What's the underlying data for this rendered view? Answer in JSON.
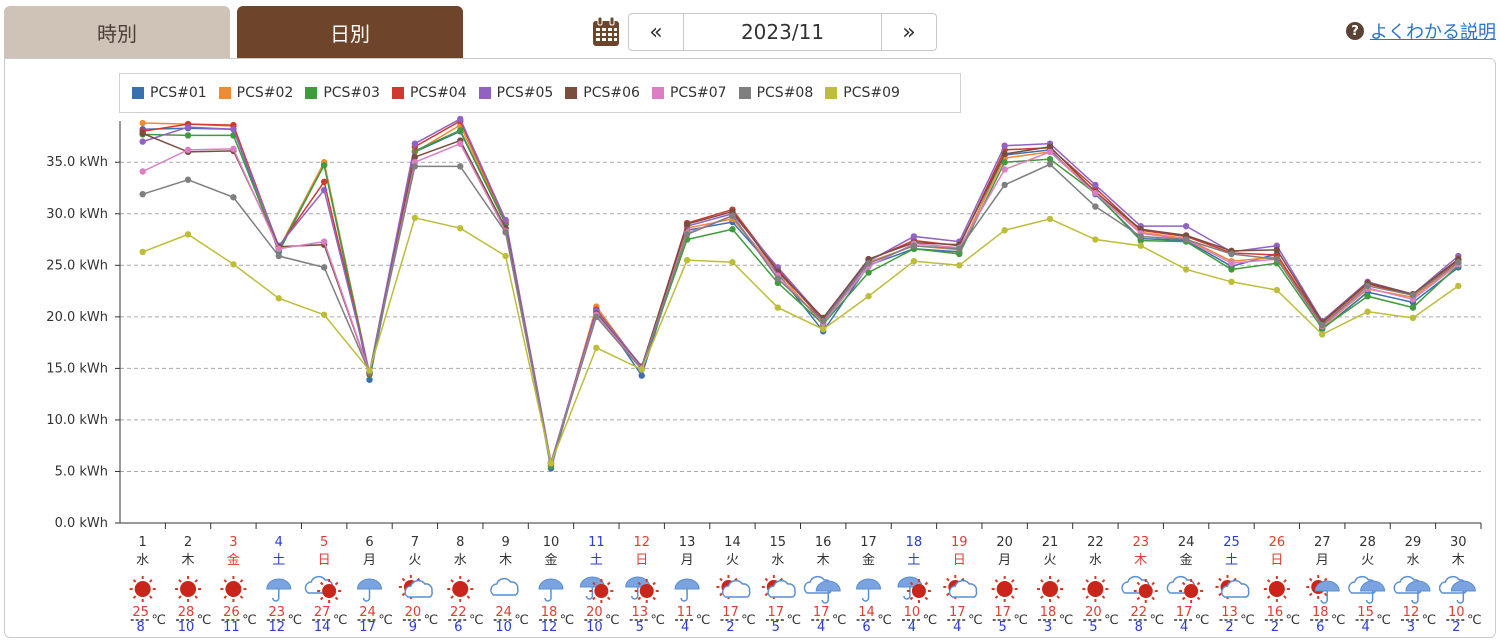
{
  "tabs": [
    {
      "label": "時別",
      "active": false
    },
    {
      "label": "日別",
      "active": true
    }
  ],
  "nav": {
    "prev": "«",
    "date": "2023/11",
    "next": "»"
  },
  "help": {
    "icon": "?",
    "label": "よくわかる説明"
  },
  "icons": {
    "calendar": "calendar-icon",
    "help": "question-circle-icon"
  },
  "colors": {
    "brand_brown": "#6e442a",
    "tab_inactive": "#cfc3b7",
    "weekday": "#333333",
    "saturday": "#2a3bd6",
    "holiday": "#e03c31",
    "high_temp": "#e03c31",
    "low_temp": "#2a3bd6"
  },
  "chart_data": {
    "type": "line",
    "ylim": [
      0,
      39
    ],
    "yticks": [
      "0.0 kWh",
      "5.0 kWh",
      "10.0 kWh",
      "15.0 kWh",
      "20.0 kWh",
      "25.0 kWh",
      "30.0 kWh",
      "35.0 kWh"
    ],
    "grid": true,
    "legend_position": "top-left",
    "x": [
      "1",
      "2",
      "3",
      "4",
      "5",
      "6",
      "7",
      "8",
      "9",
      "10",
      "11",
      "12",
      "13",
      "14",
      "15",
      "16",
      "17",
      "18",
      "19",
      "20",
      "21",
      "22",
      "23",
      "24",
      "25",
      "26",
      "27",
      "28",
      "29",
      "30"
    ],
    "weekday": [
      "水",
      "木",
      "金",
      "土",
      "日",
      "月",
      "火",
      "水",
      "木",
      "金",
      "土",
      "日",
      "月",
      "火",
      "水",
      "木",
      "金",
      "土",
      "日",
      "月",
      "火",
      "水",
      "木",
      "金",
      "土",
      "日",
      "月",
      "火",
      "水",
      "木"
    ],
    "day_type": [
      "w",
      "w",
      "h",
      "s",
      "h",
      "w",
      "w",
      "w",
      "w",
      "w",
      "s",
      "h",
      "w",
      "w",
      "w",
      "w",
      "w",
      "s",
      "h",
      "w",
      "w",
      "w",
      "h",
      "w",
      "s",
      "h",
      "w",
      "w",
      "w",
      "w"
    ],
    "weather": [
      "sunny",
      "sunny",
      "sunny",
      "rain",
      "cloudy-sunny",
      "rain",
      "sunny-cloudy",
      "sunny",
      "cloudy",
      "rain",
      "rain-sunny",
      "rain-sunny",
      "rain",
      "sunny-cloudy",
      "sunny-cloudy",
      "cloudy-rain",
      "rain",
      "rain-sunny",
      "sunny-cloudy",
      "sunny",
      "sunny",
      "sunny",
      "cloudy-sunny",
      "cloudy-sunny",
      "sunny-cloudy",
      "sunny",
      "sunny-rain",
      "cloudy-rain",
      "cloudy-rain",
      "cloudy-rain"
    ],
    "temp_high": [
      "25",
      "28",
      "26",
      "23",
      "27",
      "24",
      "20",
      "22",
      "24",
      "18",
      "20",
      "13",
      "11",
      "17",
      "17",
      "17",
      "14",
      "10",
      "17",
      "17",
      "18",
      "20",
      "22",
      "17",
      "13",
      "16",
      "18",
      "15",
      "12",
      "10"
    ],
    "temp_low": [
      "8",
      "10",
      "11",
      "12",
      "14",
      "17",
      "9",
      "6",
      "10",
      "12",
      "10",
      "5",
      "4",
      "2",
      "5",
      "4",
      "6",
      "4",
      "4",
      "5",
      "3",
      "5",
      "8",
      "4",
      "2",
      "2",
      "6",
      "4",
      "3",
      "2"
    ],
    "temp_unit": "℃",
    "series": [
      {
        "name": "PCS#01",
        "color": "#3a6fb0",
        "values": [
          38.2,
          38.3,
          38.2,
          26.3,
          34.8,
          13.9,
          36.0,
          38.0,
          29.0,
          5.3,
          20.8,
          14.3,
          28.4,
          29.2,
          24.2,
          18.6,
          25.0,
          26.6,
          26.3,
          35.7,
          36.2,
          31.9,
          27.6,
          27.4,
          24.9,
          26.1,
          18.8,
          22.4,
          21.4,
          24.8
        ]
      },
      {
        "name": "PCS#02",
        "color": "#f08a33",
        "values": [
          38.8,
          38.7,
          38.5,
          26.6,
          35.0,
          14.5,
          36.0,
          38.6,
          29.1,
          5.6,
          21.0,
          15.0,
          28.6,
          29.5,
          24.4,
          19.2,
          25.3,
          26.9,
          26.5,
          35.4,
          36.0,
          32.2,
          28.2,
          27.6,
          25.4,
          25.8,
          19.0,
          22.7,
          21.9,
          25.2
        ]
      },
      {
        "name": "PCS#03",
        "color": "#3f9b3c",
        "values": [
          37.7,
          37.6,
          37.6,
          26.5,
          34.7,
          14.4,
          36.1,
          38.1,
          29.0,
          5.5,
          20.5,
          15.0,
          27.5,
          28.5,
          23.3,
          19.3,
          24.3,
          26.6,
          26.1,
          35.0,
          35.3,
          32.0,
          27.4,
          27.3,
          24.6,
          25.2,
          18.9,
          22.0,
          20.9,
          25.0
        ]
      },
      {
        "name": "PCS#04",
        "color": "#d0392f",
        "values": [
          38.0,
          38.7,
          38.6,
          26.8,
          33.1,
          14.5,
          36.5,
          39.0,
          29.3,
          5.8,
          20.7,
          15.1,
          29.1,
          30.4,
          24.6,
          19.6,
          25.5,
          27.4,
          26.9,
          36.2,
          36.4,
          32.5,
          28.4,
          27.8,
          26.2,
          26.0,
          19.4,
          23.2,
          22.1,
          25.5
        ]
      },
      {
        "name": "PCS#05",
        "color": "#9063c2",
        "values": [
          37.0,
          38.4,
          38.2,
          26.9,
          32.3,
          14.6,
          36.8,
          39.2,
          29.4,
          5.9,
          20.6,
          15.2,
          28.8,
          30.0,
          24.8,
          19.8,
          25.4,
          27.8,
          27.3,
          36.6,
          36.8,
          32.8,
          28.8,
          28.8,
          26.3,
          26.9,
          19.6,
          23.4,
          22.2,
          25.9
        ]
      },
      {
        "name": "PCS#06",
        "color": "#7a4e3f",
        "values": [
          37.8,
          36.0,
          36.1,
          26.8,
          27.0,
          14.6,
          35.5,
          37.1,
          28.6,
          5.8,
          20.3,
          15.1,
          29.0,
          30.2,
          24.4,
          19.9,
          25.6,
          27.2,
          27.0,
          35.8,
          36.5,
          32.1,
          28.5,
          27.9,
          26.4,
          26.5,
          19.5,
          23.3,
          22.2,
          25.6
        ]
      },
      {
        "name": "PCS#07",
        "color": "#dc7ec3",
        "values": [
          34.1,
          36.2,
          36.3,
          26.6,
          27.3,
          14.6,
          35.0,
          36.8,
          28.3,
          5.8,
          20.2,
          15.0,
          28.1,
          29.8,
          24.0,
          19.4,
          24.9,
          27.1,
          26.7,
          34.3,
          36.0,
          32.0,
          28.1,
          27.5,
          25.2,
          25.6,
          19.1,
          22.8,
          21.7,
          25.1
        ]
      },
      {
        "name": "PCS#08",
        "color": "#7f7f7f",
        "values": [
          31.9,
          33.3,
          31.6,
          25.9,
          24.8,
          14.6,
          34.6,
          34.6,
          28.2,
          5.7,
          20.0,
          14.9,
          28.0,
          29.8,
          23.7,
          19.6,
          25.2,
          26.9,
          26.6,
          32.8,
          34.8,
          30.7,
          27.8,
          27.5,
          26.1,
          25.6,
          19.2,
          23.0,
          22.1,
          25.3
        ]
      },
      {
        "name": "PCS#09",
        "color": "#bdbd3a",
        "values": [
          26.3,
          28.0,
          25.1,
          21.8,
          20.2,
          14.8,
          29.6,
          28.6,
          25.9,
          5.8,
          17.0,
          14.9,
          25.5,
          25.3,
          20.9,
          18.8,
          22.0,
          25.4,
          25.0,
          28.4,
          29.5,
          27.5,
          26.9,
          24.6,
          23.4,
          22.6,
          18.3,
          20.5,
          19.9,
          23.0
        ]
      }
    ]
  }
}
